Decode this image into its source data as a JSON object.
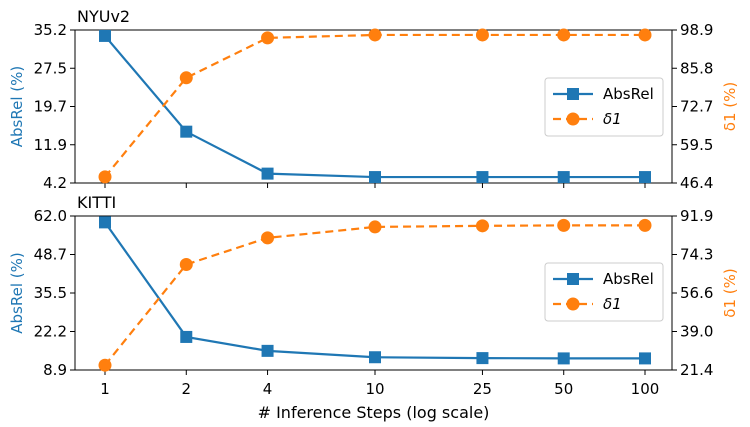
{
  "chart_data": {
    "type": "line",
    "xlabel": "# Inference Steps (log scale)",
    "x": [
      1,
      2,
      4,
      10,
      25,
      50,
      100
    ],
    "x_tick_labels": [
      "1",
      "2",
      "4",
      "10",
      "25",
      "50",
      "100"
    ],
    "x_scale": "log",
    "colors": {
      "absrel": "#1f77b4",
      "delta": "#ff7f0e"
    },
    "panels": [
      {
        "title": "NYUv2",
        "ylabel_left": "AbsRel (%)",
        "ylabel_right": "δ1 (%)",
        "ylim_left": [
          4.2,
          35.2
        ],
        "ylim_right": [
          46.4,
          98.9
        ],
        "yticks_left": [
          "35.2",
          "27.5",
          "19.7",
          "11.9",
          "4.2"
        ],
        "yticks_right": [
          "98.9",
          "85.8",
          "72.7",
          "59.5",
          "46.4"
        ],
        "series": [
          {
            "name": "AbsRel",
            "axis": "left",
            "marker": "square",
            "style": "solid",
            "values": [
              34.0,
              14.6,
              6.1,
              5.4,
              5.4,
              5.4,
              5.4
            ]
          },
          {
            "name": "δ1",
            "axis": "right",
            "marker": "circle",
            "style": "dashed",
            "values": [
              48.5,
              82.5,
              96.2,
              97.2,
              97.2,
              97.2,
              97.2
            ]
          }
        ],
        "legend": "center-right"
      },
      {
        "title": "KITTI",
        "ylabel_left": "AbsRel (%)",
        "ylabel_right": "δ1 (%)",
        "ylim_left": [
          8.9,
          62.0
        ],
        "ylim_right": [
          21.4,
          91.9
        ],
        "yticks_left": [
          "62.0",
          "48.7",
          "35.5",
          "22.2",
          "8.9"
        ],
        "yticks_right": [
          "91.9",
          "74.3",
          "56.6",
          "39.0",
          "21.4"
        ],
        "series": [
          {
            "name": "AbsRel",
            "axis": "left",
            "marker": "square",
            "style": "solid",
            "values": [
              59.8,
              20.3,
              15.5,
              13.3,
              13.0,
              12.9,
              12.9
            ]
          },
          {
            "name": "δ1",
            "axis": "right",
            "marker": "circle",
            "style": "dashed",
            "values": [
              23.6,
              69.7,
              81.9,
              86.9,
              87.4,
              87.6,
              87.6
            ]
          }
        ],
        "legend": "center-right"
      }
    ]
  }
}
